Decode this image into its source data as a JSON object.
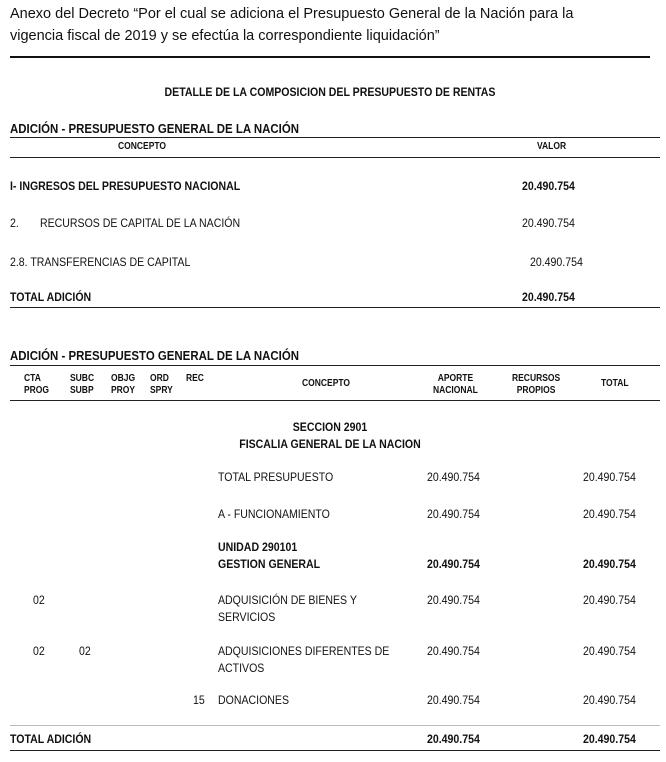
{
  "header": {
    "line1": "Anexo del Decreto “Por el cual se adiciona el Presupuesto General de la Nación para la",
    "line2": "vigencia fiscal de 2019 y se efectúa la correspondiente liquidación”"
  },
  "doc_title": "DETALLE DE LA COMPOSICION DEL PRESUPUESTO DE RENTAS",
  "table1": {
    "title": "ADICIÓN - PRESUPUESTO GENERAL DE LA NACIÓN",
    "headers": {
      "concepto": "CONCEPTO",
      "valor": "VALOR"
    },
    "rows": [
      {
        "concepto": "I- INGRESOS DEL PRESUPUESTO NACIONAL",
        "valor": "20.490.754"
      },
      {
        "num": "2.",
        "concepto": "RECURSOS DE CAPITAL DE LA NACIÓN",
        "valor": "20.490.754"
      },
      {
        "concepto": "2.8. TRANSFERENCIAS DE CAPITAL",
        "valor": "20.490.754"
      }
    ],
    "total": {
      "label": "TOTAL ADICIÓN",
      "valor": "20.490.754"
    }
  },
  "table2": {
    "title": "ADICIÓN - PRESUPUESTO GENERAL DE LA NACIÓN",
    "headers": {
      "cta": "CTA",
      "prog": "PROG",
      "subc": "SUBC",
      "subp": "SUBP",
      "objg": "OBJG",
      "proy": "PROY",
      "ord": "ORD",
      "spry": "SPRY",
      "rec": "REC",
      "concepto": "CONCEPTO",
      "aporte1": "APORTE",
      "aporte2": "NACIONAL",
      "recursos1": "RECURSOS",
      "recursos2": "PROPIOS",
      "total": "TOTAL"
    },
    "section": {
      "line1": "SECCION 2901",
      "line2": "FISCALIA GENERAL DE LA NACION"
    },
    "rows": [
      {
        "concepto": "TOTAL  PRESUPUESTO",
        "aporte": "20.490.754",
        "total": "20.490.754"
      },
      {
        "concepto": "A - FUNCIONAMIENTO",
        "aporte": "20.490.754",
        "total": "20.490.754"
      },
      {
        "concepto1": "UNIDAD 290101",
        "concepto2": "GESTION GENERAL",
        "aporte": "20.490.754",
        "total": "20.490.754"
      },
      {
        "cta": "02",
        "concepto1": "ADQUISICIÓN DE BIENES Y",
        "concepto2": "SERVICIOS",
        "aporte": "20.490.754",
        "total": "20.490.754"
      },
      {
        "cta": "02",
        "subc": "02",
        "concepto1": "ADQUISICIONES DIFERENTES DE",
        "concepto2": "ACTIVOS",
        "aporte": "20.490.754",
        "total": "20.490.754"
      },
      {
        "ord": "15",
        "concepto": "DONACIONES",
        "aporte": "20.490.754",
        "total": "20.490.754"
      }
    ],
    "total": {
      "label": "TOTAL ADICIÓN",
      "aporte": "20.490.754",
      "total": "20.490.754"
    }
  }
}
